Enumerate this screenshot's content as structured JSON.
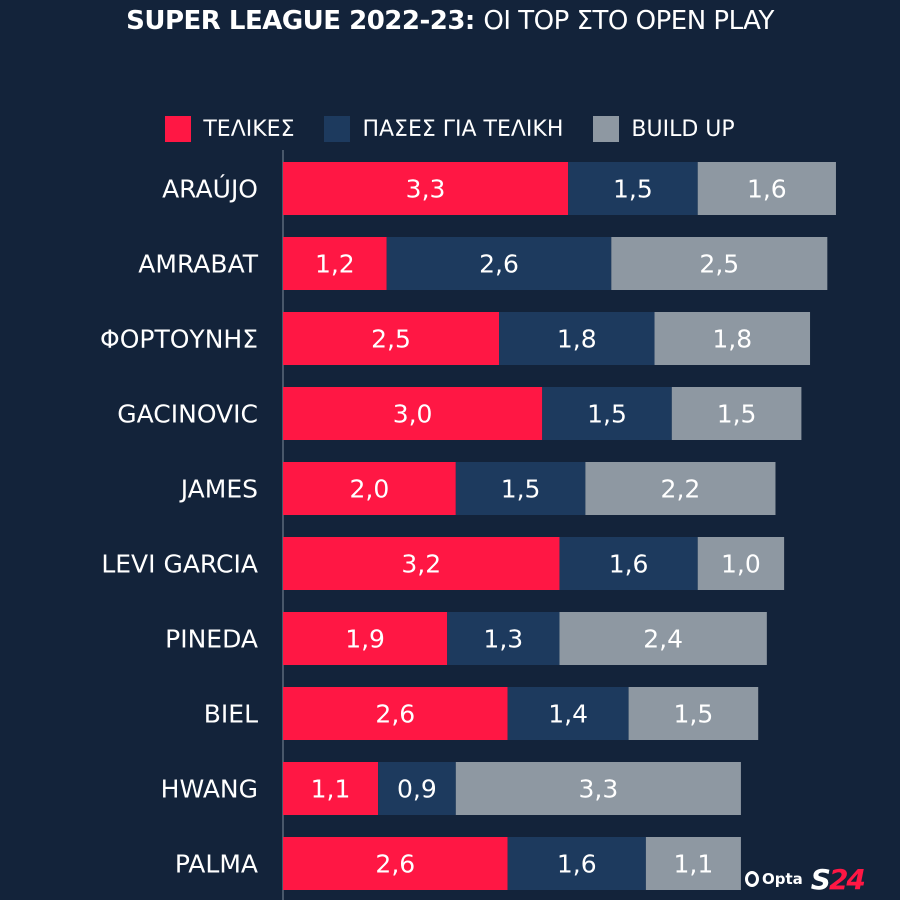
{
  "title_bold": "SUPER LEAGUE 2022-23:",
  "title_rest": "ΟΙ ΤΟΡ ΣΤΟ OPEN PLAY",
  "legend": [
    {
      "label": "ΤΕΛΙΚΕΣ",
      "color": "#ff1744"
    },
    {
      "label": "ΠΑΣΕΣ ΓΙΑ ΤΕΛΙΚΗ",
      "color": "#1d3a5e"
    },
    {
      "label": "BUILD UP",
      "color": "#8e98a2"
    }
  ],
  "logos": {
    "opta": "Opta",
    "s24_letter": "S",
    "s24_number": "24"
  },
  "chart_data": {
    "type": "bar",
    "orientation": "horizontal",
    "stacked": true,
    "categories": [
      "ARAÚJO",
      "AMRABAT",
      "ΦΟΡΤΟΥΝΗΣ",
      "GACINOVIC",
      "JAMES",
      "LEVI GARCIA",
      "PINEDA",
      "BIEL",
      "HWANG",
      "PALMA"
    ],
    "series": [
      {
        "name": "ΤΕΛΙΚΕΣ",
        "color": "#ff1744",
        "values": [
          3.3,
          1.2,
          2.5,
          3.0,
          2.0,
          3.2,
          1.9,
          2.6,
          1.1,
          2.6
        ],
        "labels": [
          "3,3",
          "1,2",
          "2,5",
          "3,0",
          "2,0",
          "3,2",
          "1,9",
          "2,6",
          "1,1",
          "2,6"
        ]
      },
      {
        "name": "ΠΑΣΕΣ ΓΙΑ ΤΕΛΙΚΗ",
        "color": "#1d3a5e",
        "values": [
          1.5,
          2.6,
          1.8,
          1.5,
          1.5,
          1.6,
          1.3,
          1.4,
          0.9,
          1.6
        ],
        "labels": [
          "1,5",
          "2,6",
          "1,8",
          "1,5",
          "1,5",
          "1,6",
          "1,3",
          "1,4",
          "0,9",
          "1,6"
        ]
      },
      {
        "name": "BUILD UP",
        "color": "#8e98a2",
        "values": [
          1.6,
          2.5,
          1.8,
          1.5,
          2.2,
          1.0,
          2.4,
          1.5,
          3.3,
          1.1
        ],
        "labels": [
          "1,6",
          "2,5",
          "1,8",
          "1,5",
          "2,2",
          "1,0",
          "2,4",
          "1,5",
          "3,3",
          "1,1"
        ]
      }
    ],
    "title": "SUPER LEAGUE 2022-23: ΟΙ ΤΟΡ ΣΤΟ OPEN PLAY",
    "xlabel": "",
    "ylabel": "",
    "grid": false,
    "legend_position": "top"
  }
}
